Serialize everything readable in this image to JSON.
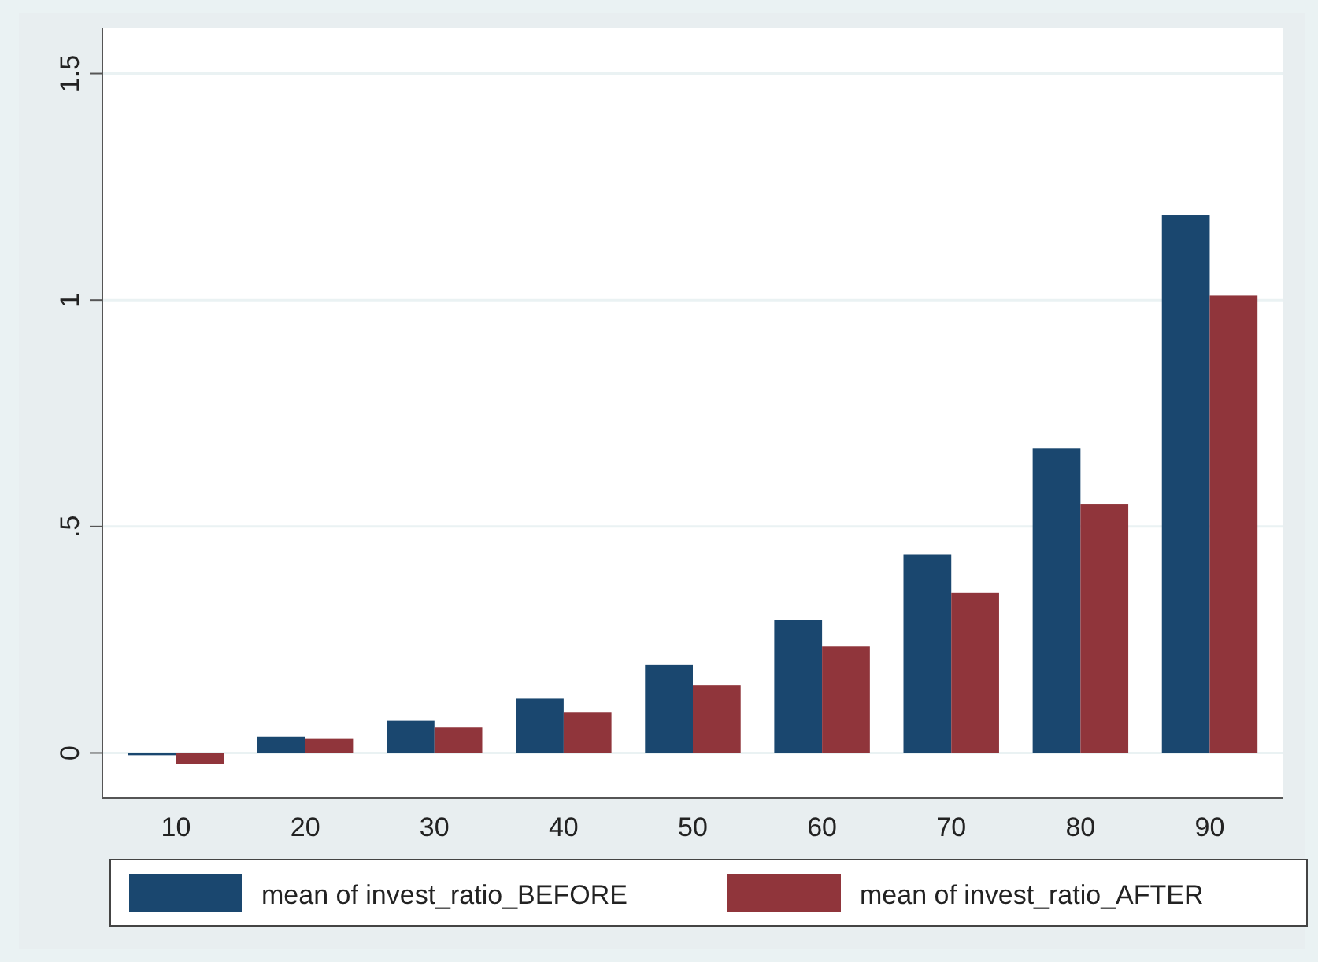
{
  "chart_data": {
    "type": "bar",
    "categories": [
      "10",
      "20",
      "30",
      "40",
      "50",
      "60",
      "70",
      "80",
      "90"
    ],
    "series": [
      {
        "name": "mean of invest_ratio_BEFORE",
        "color": "#1a476f",
        "values": [
          -0.005,
          0.036,
          0.071,
          0.12,
          0.194,
          0.294,
          0.438,
          0.673,
          1.188
        ]
      },
      {
        "name": "mean of invest_ratio_AFTER",
        "color": "#90353b",
        "values": [
          -0.024,
          0.031,
          0.056,
          0.089,
          0.15,
          0.235,
          0.354,
          0.55,
          1.01
        ]
      }
    ],
    "ylim": [
      -0.1,
      1.6
    ],
    "yticks": [
      {
        "value": 0,
        "label": "0"
      },
      {
        "value": 0.5,
        "label": ".5"
      },
      {
        "value": 1,
        "label": "1"
      },
      {
        "value": 1.5,
        "label": "1.5"
      }
    ],
    "grid": "y",
    "legend": "bottom"
  }
}
